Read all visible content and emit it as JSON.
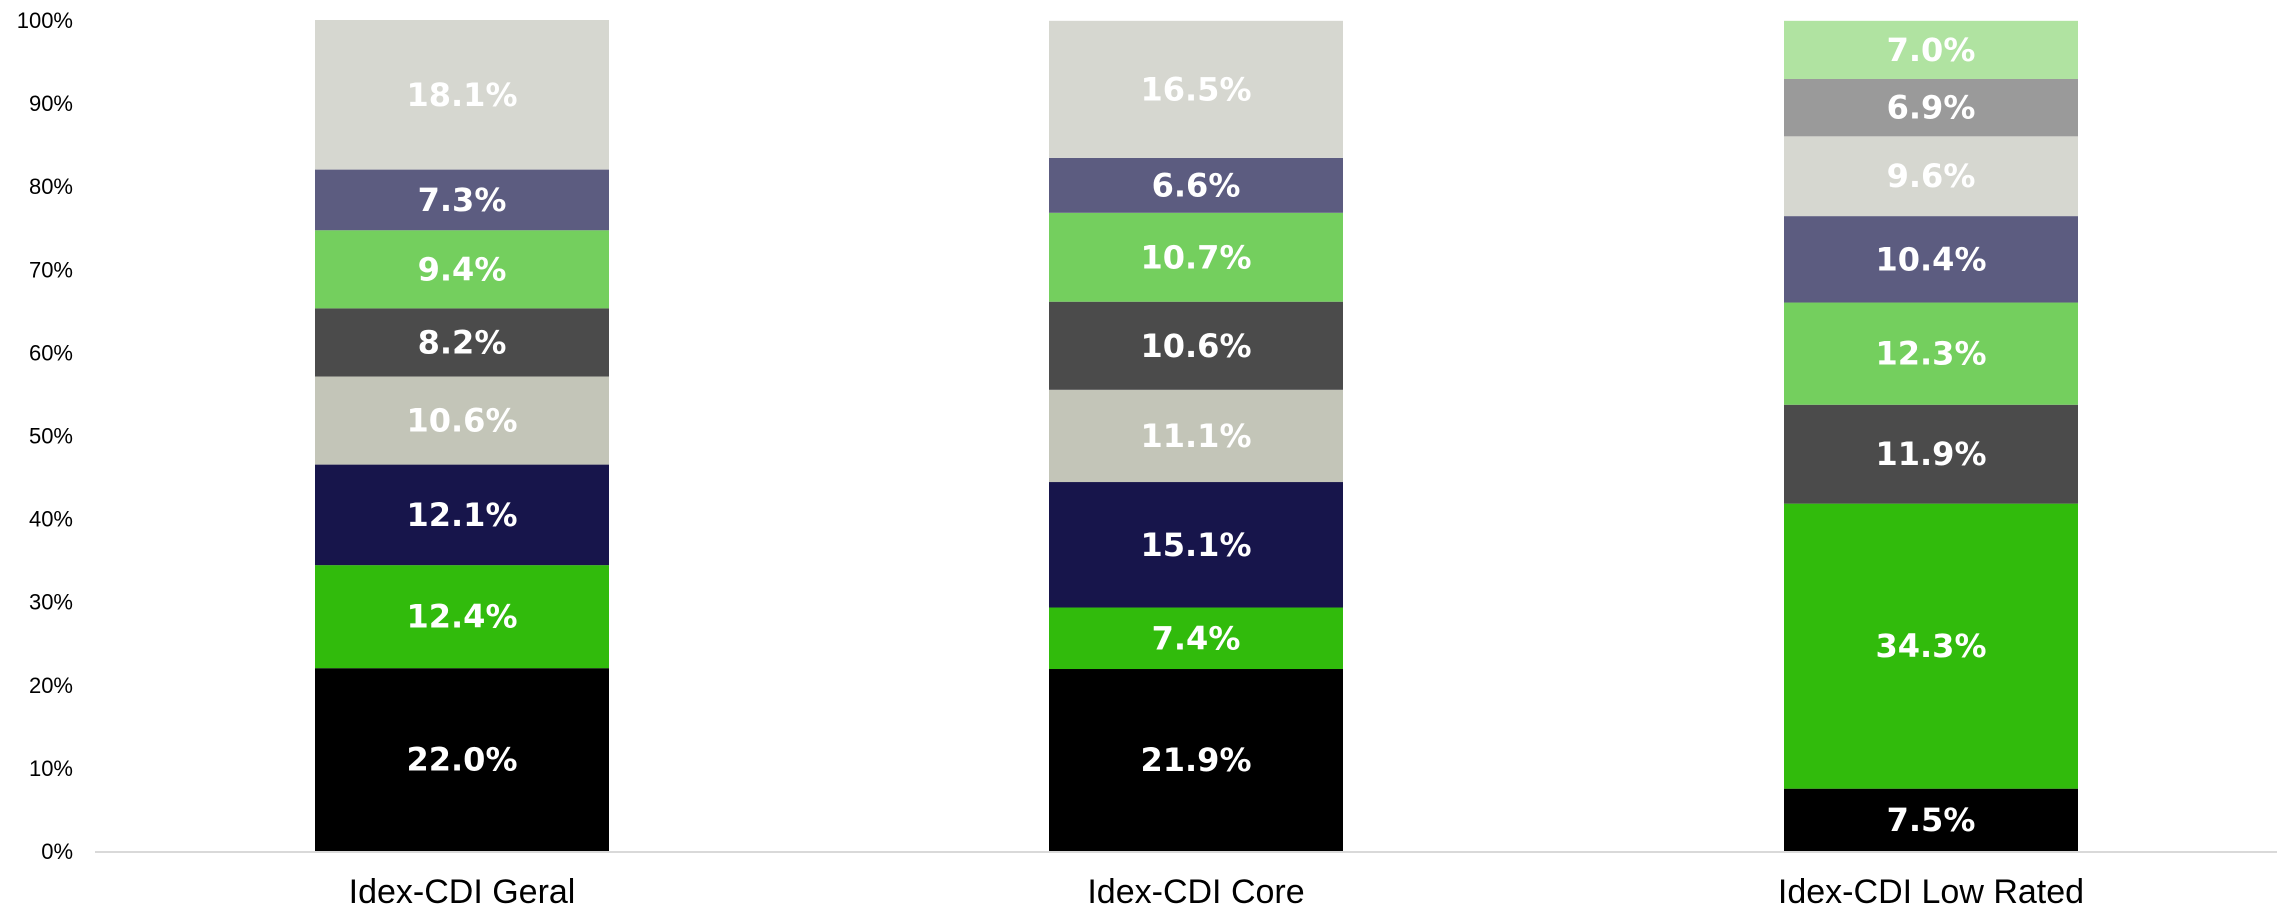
{
  "chart_data": {
    "type": "bar",
    "stacked": true,
    "title": "",
    "xlabel": "",
    "ylabel": "",
    "ylim": [
      0,
      100
    ],
    "y_ticks": [
      "0%",
      "10%",
      "20%",
      "30%",
      "40%",
      "50%",
      "60%",
      "70%",
      "80%",
      "90%",
      "100%"
    ],
    "y_tick_values": [
      0,
      10,
      20,
      30,
      40,
      50,
      60,
      70,
      80,
      90,
      100
    ],
    "grid": false,
    "legend": "none",
    "categories": [
      "Idex-CDI Geral",
      "Idex-CDI Core",
      "Idex-CDI Low Rated"
    ],
    "bars": [
      {
        "segments": [
          {
            "value": 22.0,
            "label": "22.0%",
            "color": "#000000"
          },
          {
            "value": 12.4,
            "label": "12.4%",
            "color": "#31bb0c"
          },
          {
            "value": 12.1,
            "label": "12.1%",
            "color": "#17154b"
          },
          {
            "value": 10.6,
            "label": "10.6%",
            "color": "#c3c5b8"
          },
          {
            "value": 8.2,
            "label": "8.2%",
            "color": "#4b4b4b"
          },
          {
            "value": 9.4,
            "label": "9.4%",
            "color": "#74cf5e"
          },
          {
            "value": 7.3,
            "label": "7.3%",
            "color": "#5c5c80"
          },
          {
            "value": 18.1,
            "label": "18.1%",
            "color": "#d6d7d0"
          }
        ]
      },
      {
        "segments": [
          {
            "value": 21.9,
            "label": "21.9%",
            "color": "#000000"
          },
          {
            "value": 7.4,
            "label": "7.4%",
            "color": "#31bb0c"
          },
          {
            "value": 15.1,
            "label": "15.1%",
            "color": "#17154b"
          },
          {
            "value": 11.1,
            "label": "11.1%",
            "color": "#c3c5b8"
          },
          {
            "value": 10.6,
            "label": "10.6%",
            "color": "#4b4b4b"
          },
          {
            "value": 10.7,
            "label": "10.7%",
            "color": "#74cf5e"
          },
          {
            "value": 6.6,
            "label": "6.6%",
            "color": "#5c5c80"
          },
          {
            "value": 16.5,
            "label": "16.5%",
            "color": "#d6d7d0"
          }
        ]
      },
      {
        "segments": [
          {
            "value": 7.5,
            "label": "7.5%",
            "color": "#000000"
          },
          {
            "value": 34.3,
            "label": "34.3%",
            "color": "#31bb0c"
          },
          {
            "value": 11.9,
            "label": "11.9%",
            "color": "#4b4b4b"
          },
          {
            "value": 12.3,
            "label": "12.3%",
            "color": "#74cf5e"
          },
          {
            "value": 10.4,
            "label": "10.4%",
            "color": "#5c5c80"
          },
          {
            "value": 9.6,
            "label": "9.6%",
            "color": "#d6d7d0"
          },
          {
            "value": 6.9,
            "label": "6.9%",
            "color": "#9a9a9a"
          },
          {
            "value": 7.0,
            "label": "7.0%",
            "color": "#b0e3a1"
          }
        ]
      }
    ],
    "colors": {
      "axis_line": "#d9d9d9",
      "segment_text": "#ffffff"
    }
  }
}
